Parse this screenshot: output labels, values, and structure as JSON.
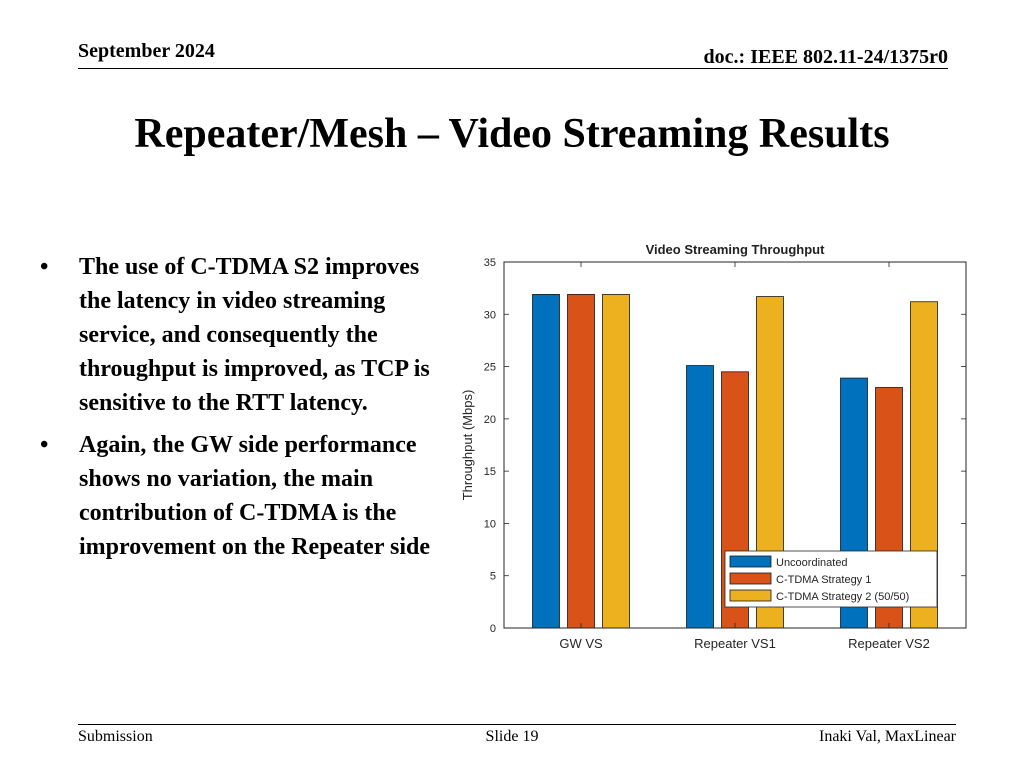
{
  "header": {
    "date": "September 2024",
    "doc": "doc.: IEEE 802.11-24/1375r0"
  },
  "slide_title": "Repeater/Mesh – Video Streaming Results",
  "bullets": [
    "The use of C-TDMA S2 improves the latency in video streaming service, and consequently the throughput is improved, as TCP is sensitive to the RTT latency.",
    "Again, the GW side performance shows no variation, the main contribution of C-TDMA is the improvement on the Repeater side"
  ],
  "bullet_glyph": "•",
  "footer": {
    "left": "Submission",
    "center": "Slide 19",
    "right": "Inaki Val, MaxLinear"
  },
  "chart_data": {
    "type": "bar",
    "title": "Video Streaming Throughput",
    "xlabel": "",
    "ylabel": "Throughput (Mbps)",
    "ylim": [
      0,
      35
    ],
    "yticks": [
      0,
      5,
      10,
      15,
      20,
      25,
      30,
      35
    ],
    "categories": [
      "GW VS",
      "Repeater VS1",
      "Repeater VS2"
    ],
    "series": [
      {
        "name": "Uncoordinated",
        "color": "#0072BD",
        "values": [
          31.9,
          25.1,
          23.9
        ]
      },
      {
        "name": "C-TDMA Strategy 1",
        "color": "#D95319",
        "values": [
          31.9,
          24.5,
          23.0
        ]
      },
      {
        "name": "C-TDMA Strategy 2 (50/50)",
        "color": "#EDB120",
        "values": [
          31.9,
          31.7,
          31.2
        ]
      }
    ],
    "grid": false,
    "legend_position": "bottom-right"
  }
}
